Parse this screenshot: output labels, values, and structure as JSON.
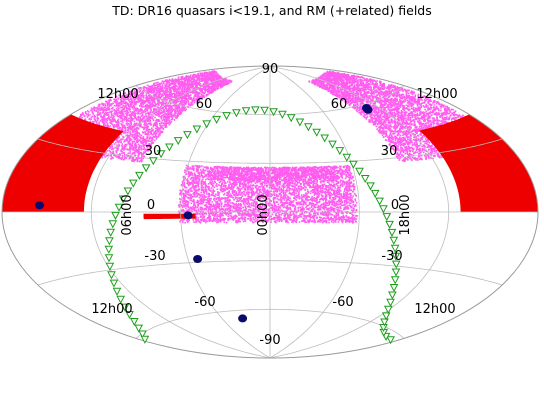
{
  "chart_data": {
    "type": "scatter",
    "projection": "aitoff",
    "title": "TD: DR16 quasars i<19.1, and RM (+related) fields",
    "grid": true,
    "dec_ticks": [
      "90",
      "60",
      "60",
      "30",
      "30",
      "0",
      "0",
      "-30",
      "-30",
      "-60",
      "-60",
      "-90"
    ],
    "dec_tick_values": [
      90,
      60,
      60,
      30,
      30,
      0,
      0,
      -30,
      -30,
      -60,
      -60,
      -90
    ],
    "ra_ticks": [
      "12h00",
      "12h00",
      "06h00",
      "00h00",
      "18h00",
      "12h00",
      "12h00"
    ],
    "colors": {
      "quasars": "#ff5cf0",
      "high_density": "#ee0000",
      "rm_fields": "#0a0a6e",
      "plane_markers": "#1a9e1a",
      "grid": "#bdbdbd"
    },
    "series": [
      {
        "style": "magenta dots",
        "regions": [
          {
            "lon": [
              95,
              175
            ],
            "lat": [
              28,
              78
            ]
          },
          {
            "lon": [
              -175,
              -95
            ],
            "lat": [
              28,
              78
            ]
          },
          {
            "lon": [
              -58,
              62
            ],
            "lat": [
              -6,
              28
            ]
          },
          {
            "lon": [
              -45,
              45
            ],
            "lat": [
              20,
              28
            ]
          }
        ]
      },
      {
        "style": "red filled",
        "regions": [
          {
            "lon": [
              125,
              180
            ],
            "lat": [
              0,
              42
            ]
          },
          {
            "lon": [
              -180,
              -128
            ],
            "lat": [
              0,
              42
            ]
          },
          {
            "lon": [
              50,
              85
            ],
            "lat": [
              -4,
              -1
            ]
          }
        ]
      },
      {
        "style": "dark blue filled circles",
        "points": [
          {
            "lon": 155,
            "lat": 3
          },
          {
            "lon": -108,
            "lat": 58
          },
          {
            "lon": -107,
            "lat": 57
          },
          {
            "lon": 55,
            "lat": -2
          },
          {
            "lon": 53,
            "lat": -28
          },
          {
            "lon": 35,
            "lat": -65
          }
        ]
      },
      {
        "style": "green open triangles",
        "points_description": "Galactic plane",
        "curve": "galactic_plane"
      }
    ]
  }
}
